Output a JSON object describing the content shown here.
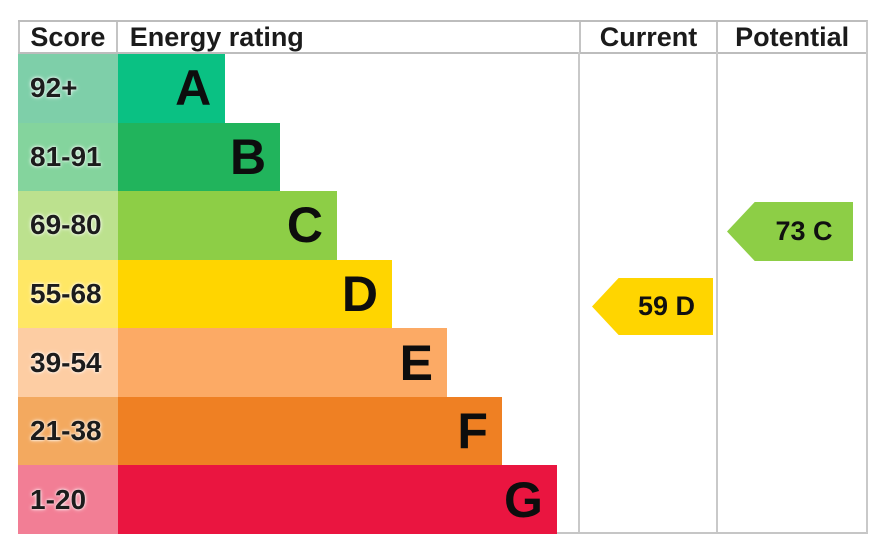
{
  "header": {
    "score": "Score",
    "energy_rating": "Energy rating",
    "current": "Current",
    "potential": "Potential"
  },
  "bands": [
    {
      "letter": "A",
      "score": "92+",
      "color": "#0ac183",
      "tint": "#7ecfa9",
      "width": "23.2%"
    },
    {
      "letter": "B",
      "score": "81-91",
      "color": "#21b45c",
      "tint": "#84d49d",
      "width": "35.1%"
    },
    {
      "letter": "C",
      "score": "69-80",
      "color": "#8dce46",
      "tint": "#bce18e",
      "width": "47.4%"
    },
    {
      "letter": "D",
      "score": "55-68",
      "color": "#ffd500",
      "tint": "#ffe765",
      "width": "59.3%"
    },
    {
      "letter": "E",
      "score": "39-54",
      "color": "#fcaa65",
      "tint": "#fdcda3",
      "width": "71.2%"
    },
    {
      "letter": "F",
      "score": "21-38",
      "color": "#ef8023",
      "tint": "#f3a95f",
      "width": "83.1%"
    },
    {
      "letter": "G",
      "score": "1-20",
      "color": "#ea1540",
      "tint": "#f27e95",
      "width": "95.0%"
    }
  ],
  "current": {
    "label": "59 D",
    "value": 59,
    "band": "D",
    "color": "#ffd500"
  },
  "potential": {
    "label": "73 C",
    "value": 73,
    "band": "C",
    "color": "#8dce46"
  },
  "chart_data": {
    "type": "bar",
    "title": "Energy rating",
    "columns": [
      "Score",
      "Energy rating",
      "Current",
      "Potential"
    ],
    "categories": [
      "A",
      "B",
      "C",
      "D",
      "E",
      "F",
      "G"
    ],
    "score_ranges": [
      "92+",
      "81-91",
      "69-80",
      "55-68",
      "39-54",
      "21-38",
      "1-20"
    ],
    "bar_lengths_pct": [
      23.2,
      35.1,
      47.4,
      59.3,
      71.2,
      83.1,
      95.0
    ],
    "band_colors": [
      "#0ac183",
      "#21b45c",
      "#8dce46",
      "#ffd500",
      "#fcaa65",
      "#ef8023",
      "#ea1540"
    ],
    "band_tint_colors": [
      "#7ecfa9",
      "#84d49d",
      "#bce18e",
      "#ffe765",
      "#fdcda3",
      "#f3a95f",
      "#f27e95"
    ],
    "markers": [
      {
        "name": "Current",
        "label": "59 D",
        "value": 59,
        "band": "D",
        "color": "#ffd500",
        "arrow_direction": "left"
      },
      {
        "name": "Potential",
        "label": "73 C",
        "value": 73,
        "band": "C",
        "color": "#8dce46",
        "arrow_direction": "left"
      }
    ],
    "grid": false,
    "legend_position": "none"
  }
}
